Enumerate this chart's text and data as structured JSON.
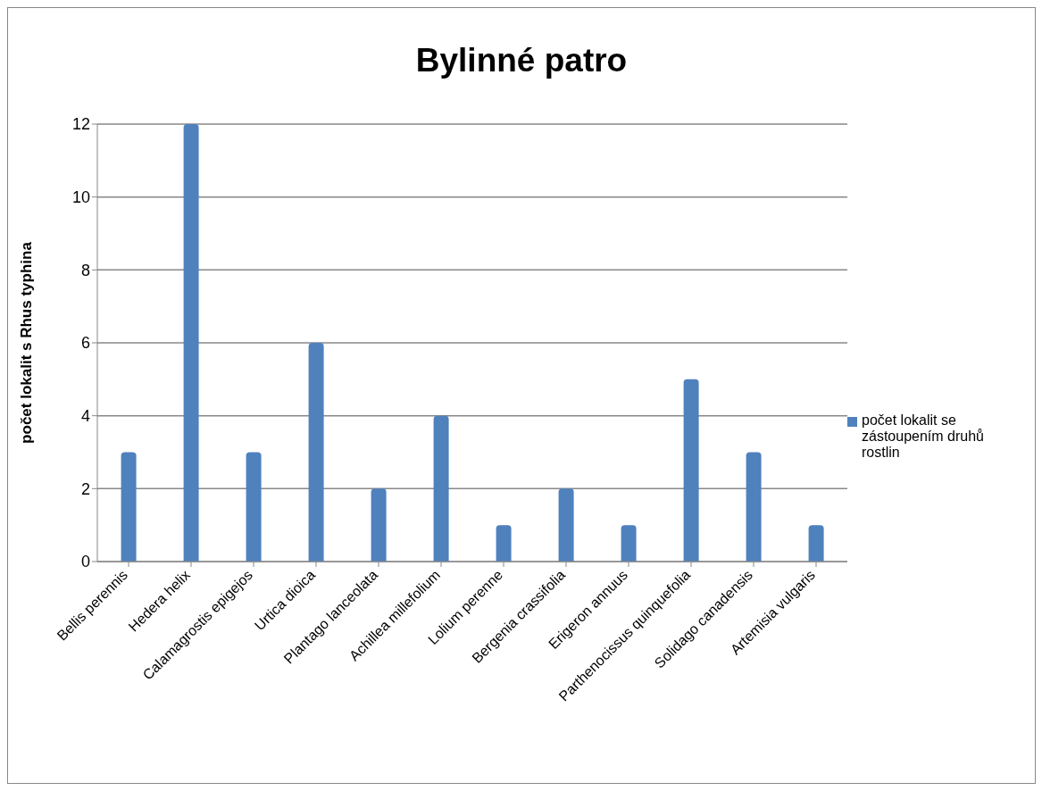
{
  "chart_data": {
    "type": "bar",
    "title": "Bylinné patro",
    "ylabel": "počet lokalit s Rhus typhina",
    "categories": [
      "Bellis perennis",
      "Hedera helix",
      "Calamagrostis epigejos",
      "Urtica dioica",
      "Plantago lanceolata",
      "Achillea millefolium",
      "Lolium perenne",
      "Bergenia crassifolia",
      "Erigeron annuus",
      "Parthenocissus quinquefolia",
      "Solidago canadensis",
      "Artemisia vulgaris"
    ],
    "series": [
      {
        "name": "počet lokalit se zástoupením druhů rostlin",
        "color": "#4f81bd",
        "values": [
          3,
          12,
          3,
          6,
          2,
          4,
          1,
          2,
          1,
          5,
          3,
          1
        ]
      }
    ],
    "ylim": [
      0,
      12
    ],
    "yticks": [
      0,
      2,
      4,
      6,
      8,
      10,
      12
    ],
    "grid": "y",
    "legend": "right"
  }
}
